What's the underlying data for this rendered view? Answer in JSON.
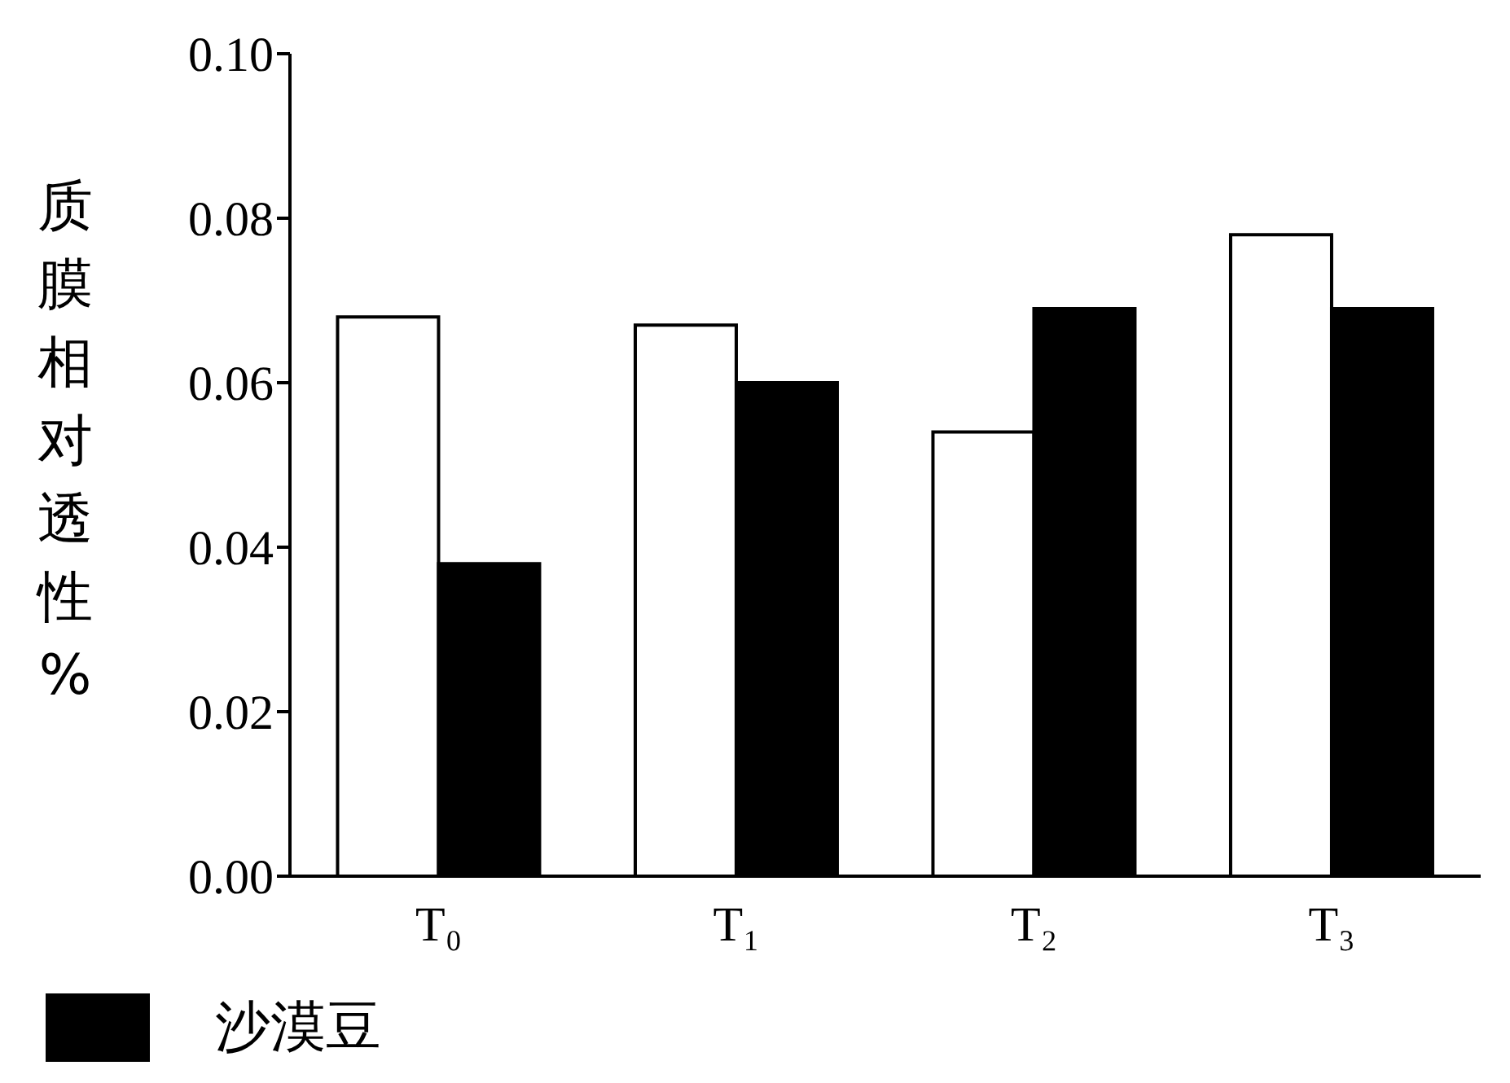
{
  "chart_data": {
    "type": "bar",
    "ylabel": "质膜相对透性%",
    "categories": [
      "T₀",
      "T₁",
      "T₂",
      "T₃"
    ],
    "series": [
      {
        "color": "#ffffff",
        "values": [
          0.068,
          0.067,
          0.054,
          0.078
        ]
      },
      {
        "name": "沙漠豆",
        "color": "#000000",
        "values": [
          0.038,
          0.06,
          0.069,
          0.069
        ]
      }
    ],
    "ylim": [
      0,
      0.1
    ],
    "yticks": [
      {
        "value": 0,
        "label": "0.00"
      },
      {
        "value": 0.02,
        "label": "0.02"
      },
      {
        "value": 0.04,
        "label": "0.04"
      },
      {
        "value": 0.06,
        "label": "0.06"
      },
      {
        "value": 0.08,
        "label": "0.08"
      },
      {
        "value": 0.1,
        "label": "0.10"
      }
    ],
    "grid": false,
    "legend": "bottom"
  }
}
